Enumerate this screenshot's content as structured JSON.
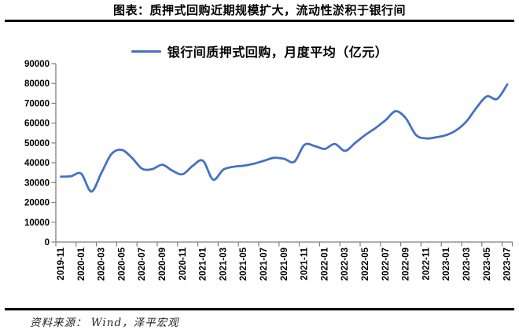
{
  "page": {
    "title": "图表：质押式回购近期规模扩大，流动性淤积于银行间",
    "source": "资料来源： Wind，泽平宏观"
  },
  "colors": {
    "accent_line": "#4472C4",
    "axis": "#7f7f7f",
    "text": "#000000",
    "divider": "#000000"
  },
  "chart_data": {
    "type": "line",
    "title": "图表：质押式回购近期规模扩大，流动性淤积于银行间",
    "legend_position": "top",
    "grid": false,
    "smooth": true,
    "xlabel": "",
    "ylabel": "",
    "ylim": [
      0,
      90000
    ],
    "y_ticks": [
      0,
      10000,
      20000,
      30000,
      40000,
      50000,
      60000,
      70000,
      80000,
      90000
    ],
    "x": [
      "2019-11",
      "2019-12",
      "2020-01",
      "2020-02",
      "2020-03",
      "2020-04",
      "2020-05",
      "2020-06",
      "2020-07",
      "2020-08",
      "2020-09",
      "2020-10",
      "2020-11",
      "2020-12",
      "2021-01",
      "2021-02",
      "2021-03",
      "2021-04",
      "2021-05",
      "2021-06",
      "2021-07",
      "2021-08",
      "2021-09",
      "2021-10",
      "2021-11",
      "2021-12",
      "2022-01",
      "2022-02",
      "2022-03",
      "2022-04",
      "2022-05",
      "2022-06",
      "2022-07",
      "2022-08",
      "2022-09",
      "2022-10",
      "2022-11",
      "2022-12",
      "2023-01",
      "2023-02",
      "2023-03",
      "2023-04",
      "2023-05",
      "2023-06",
      "2023-07"
    ],
    "x_tick_labels": [
      "2019-11",
      "2020-01",
      "2020-03",
      "2020-05",
      "2020-07",
      "2020-09",
      "2020-11",
      "2021-01",
      "2021-03",
      "2021-05",
      "2021-07",
      "2021-09",
      "2021-11",
      "2022-01",
      "2022-03",
      "2022-05",
      "2022-07",
      "2022-09",
      "2022-11",
      "2023-01",
      "2023-03",
      "2023-05",
      "2023-07"
    ],
    "series": [
      {
        "name": "银行间质押式回购，月度平均（亿元）",
        "color": "#4472C4",
        "values": [
          33000,
          33200,
          34500,
          25500,
          35000,
          44500,
          46500,
          42500,
          37000,
          36800,
          39000,
          36000,
          34200,
          38500,
          41000,
          31500,
          36500,
          38000,
          38500,
          39500,
          41000,
          42500,
          42000,
          40500,
          49000,
          48500,
          47000,
          49500,
          46000,
          50000,
          54000,
          57500,
          61500,
          66000,
          62500,
          54000,
          52300,
          52900,
          54000,
          56500,
          61000,
          68000,
          73500,
          72200,
          79500
        ]
      }
    ]
  }
}
